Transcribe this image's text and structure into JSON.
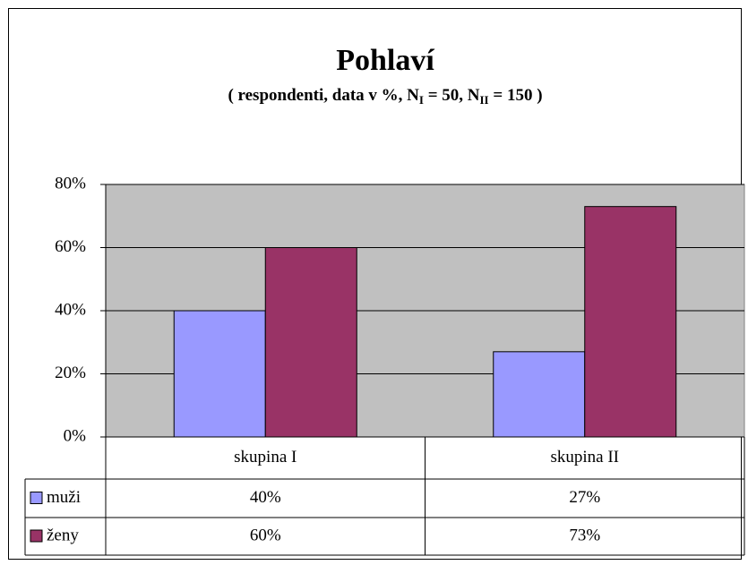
{
  "chart_data": {
    "type": "bar",
    "title": "Pohlaví",
    "subtitle": [
      "( respondenti, data v %, N",
      "I",
      " = 50, N",
      "II",
      " = 150 )"
    ],
    "categories": [
      "skupina I",
      "skupina II"
    ],
    "series": [
      {
        "name": "muži",
        "color": "#9999ff",
        "values": [
          40,
          27
        ],
        "value_labels": [
          "40%",
          "27%"
        ]
      },
      {
        "name": "ženy",
        "color": "#993366",
        "values": [
          60,
          73
        ],
        "value_labels": [
          "60%",
          "73%"
        ]
      }
    ],
    "ylim": [
      0,
      80
    ],
    "yticks": [
      {
        "value": 0,
        "label": "0%"
      },
      {
        "value": 20,
        "label": "20%"
      },
      {
        "value": 40,
        "label": "40%"
      },
      {
        "value": 60,
        "label": "60%"
      },
      {
        "value": 80,
        "label": "80%"
      }
    ],
    "grid": true,
    "plot_background": "#c0c0c0"
  }
}
